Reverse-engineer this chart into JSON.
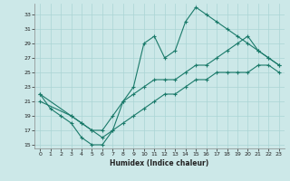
{
  "xlabel": "Humidex (Indice chaleur)",
  "bg_color": "#cce8e8",
  "line_color": "#1a7a6a",
  "grid_color": "#aad4d4",
  "xlim": [
    -0.5,
    23.5
  ],
  "ylim": [
    14.5,
    34.5
  ],
  "xticks": [
    0,
    1,
    2,
    3,
    4,
    5,
    6,
    7,
    8,
    9,
    10,
    11,
    12,
    13,
    14,
    15,
    16,
    17,
    18,
    19,
    20,
    21,
    22,
    23
  ],
  "yticks": [
    15,
    17,
    19,
    21,
    23,
    25,
    27,
    29,
    31,
    33
  ],
  "line1_x": [
    0,
    1,
    2,
    3,
    4,
    5,
    6,
    7,
    8,
    9,
    10,
    11,
    12,
    13,
    14,
    15,
    16,
    17,
    18,
    19,
    20,
    21,
    22,
    23
  ],
  "line1_y": [
    22,
    20,
    19,
    18,
    16,
    15,
    15,
    17,
    21,
    23,
    29,
    30,
    27,
    28,
    32,
    34,
    33,
    32,
    31,
    30,
    29,
    28,
    27,
    26
  ],
  "line2_x": [
    0,
    3,
    4,
    5,
    6,
    7,
    8,
    9,
    10,
    11,
    12,
    13,
    14,
    15,
    16,
    17,
    18,
    19,
    20,
    21,
    22,
    23
  ],
  "line2_y": [
    22,
    19,
    18,
    17,
    17,
    19,
    21,
    22,
    23,
    24,
    24,
    24,
    25,
    26,
    26,
    27,
    28,
    29,
    30,
    28,
    27,
    26
  ],
  "line3_x": [
    0,
    3,
    4,
    5,
    6,
    7,
    8,
    9,
    10,
    11,
    12,
    13,
    14,
    15,
    16,
    17,
    18,
    19,
    20,
    21,
    22,
    23
  ],
  "line3_y": [
    21,
    19,
    18,
    17,
    16,
    17,
    18,
    19,
    20,
    21,
    22,
    22,
    23,
    24,
    24,
    25,
    25,
    25,
    25,
    26,
    26,
    25
  ]
}
